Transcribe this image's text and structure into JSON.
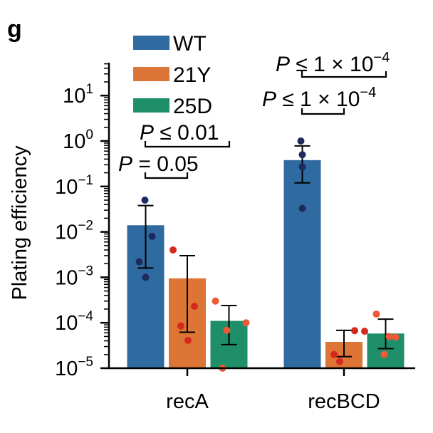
{
  "chart_data": {
    "type": "bar",
    "panel_label": "g",
    "ylabel": "Plating efficiency",
    "yscale": "log",
    "ylim": [
      1e-05,
      50
    ],
    "yticks": [
      {
        "value": 1e-05,
        "exp": "−5"
      },
      {
        "value": 0.0001,
        "exp": "−4"
      },
      {
        "value": 0.001,
        "exp": "−3"
      },
      {
        "value": 0.01,
        "exp": "−2"
      },
      {
        "value": 0.1,
        "exp": "−1"
      },
      {
        "value": 1,
        "exp": "0"
      },
      {
        "value": 10,
        "exp": "1"
      }
    ],
    "ytick_base": "10",
    "categories": [
      "recA",
      "recBCD"
    ],
    "series": [
      {
        "name": "WT",
        "color": "#2f6aa0",
        "dot_color": "#1f2a5c",
        "values": [
          0.014,
          0.38
        ],
        "err_low": [
          0.0016,
          0.12
        ],
        "err_high": [
          0.038,
          0.78
        ],
        "points": [
          [
            0.05,
            0.008,
            0.0022,
            0.001
          ],
          [
            1.0,
            0.5,
            0.27,
            0.033
          ]
        ]
      },
      {
        "name": "21Y",
        "color": "#dc7535",
        "dot_color": "#d42a1e",
        "values": [
          0.00095,
          3.8e-05
        ],
        "err_low": [
          6.2e-05,
          1.8e-05
        ],
        "err_high": [
          0.003,
          6.8e-05
        ],
        "points": [
          [
            0.004,
            0.00023,
            8.5e-05,
            4.1e-05
          ],
          [
            6.7e-05,
            6.5e-05,
            2e-05,
            1.4e-05
          ]
        ]
      },
      {
        "name": "25D",
        "color": "#1f8f6a",
        "dot_color": "#ee5a35",
        "values": [
          0.00011,
          5.8e-05
        ],
        "err_low": [
          3.3e-05,
          2.7e-05
        ],
        "err_high": [
          0.00024,
          0.00012
        ],
        "points": [
          [
            0.0003,
            0.0001,
            6.8e-05,
            1e-05
          ],
          [
            0.000155,
            5e-05,
            4.8e-05,
            2e-05
          ]
        ]
      }
    ],
    "annotations": [
      {
        "prefix": "P",
        "op": " = ",
        "value": "0.05"
      },
      {
        "prefix": "P",
        "op": " ≤ ",
        "value": "0.01"
      },
      {
        "prefix": "P",
        "op": " ≤ ",
        "value": "1 × 10",
        "exp": "−4"
      },
      {
        "prefix": "P",
        "op": " ≤ ",
        "value": "1 × 10",
        "exp": "−4"
      }
    ],
    "legend_position": "top-left"
  }
}
